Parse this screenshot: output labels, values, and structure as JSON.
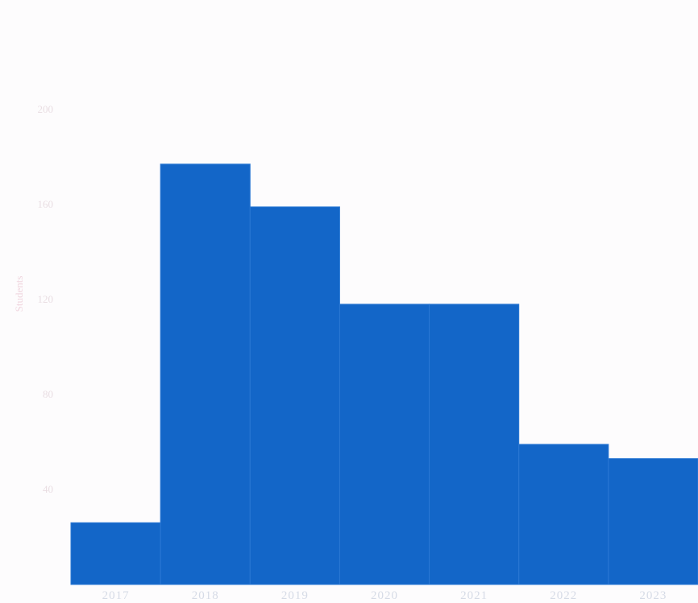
{
  "chart_data": {
    "type": "bar",
    "title": "",
    "xlabel": "",
    "ylabel": "Students",
    "categories": [
      "2017",
      "2018",
      "2019",
      "2020",
      "2021",
      "2022",
      "2023"
    ],
    "values": [
      26,
      177,
      159,
      118,
      118,
      59,
      53
    ],
    "ylim": [
      0,
      240
    ],
    "yticks": [
      40,
      80,
      120,
      160,
      200
    ],
    "ytick_labels": [
      "40",
      "80",
      "120",
      "160",
      "200"
    ],
    "grid": false,
    "colors": {
      "bar": "#1366c8",
      "background": "#fdfcfd"
    }
  }
}
